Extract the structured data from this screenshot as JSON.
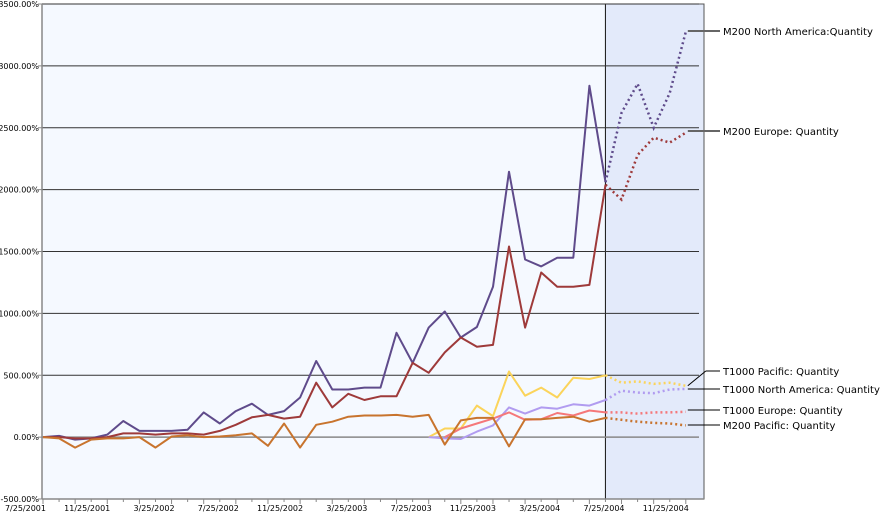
{
  "chart_data": {
    "type": "line",
    "title": "",
    "xlabel": "",
    "ylabel": "",
    "ylim": [
      -500,
      3500
    ],
    "y_ticks": [
      "-500.00%",
      "0.00%",
      "500.00%",
      "1000.00%",
      "1500.00%",
      "2000.00%",
      "2500.00%",
      "3000.00%",
      "3500.00%"
    ],
    "y_tick_values": [
      -500,
      0,
      500,
      1000,
      1500,
      2000,
      2500,
      3000,
      3500
    ],
    "x_tick_labels": [
      "7/25/2001",
      "11/25/2001",
      "3/25/2002",
      "7/25/2002",
      "11/25/2002",
      "3/25/2003",
      "7/25/2003",
      "11/25/2003",
      "3/25/2004",
      "7/25/2004",
      "11/25/2004"
    ],
    "x_start": "7/25/2001",
    "x_interval": "monthly",
    "forecast_start_index": 35,
    "grid": true,
    "legend": "right, labels at line ends",
    "colors": {
      "plot_bg": "#f5f9ff",
      "forecast_bg": "#e3eafa"
    },
    "series": [
      {
        "name": "M200 North America:Quantity",
        "color": "#5f4b8b",
        "values": [
          0,
          10,
          -20,
          -10,
          20,
          130,
          50,
          50,
          50,
          60,
          200,
          110,
          210,
          270,
          180,
          210,
          320,
          615,
          385,
          385,
          400,
          400,
          843,
          600,
          885,
          1015,
          805,
          890,
          1215,
          2145,
          1435,
          1380,
          1450,
          1450,
          2840,
          2060
        ],
        "forecast": [
          2060,
          2620,
          2855,
          2500,
          2780,
          3275
        ]
      },
      {
        "name": "M200 Europe: Quantity",
        "color": "#9e3a3a",
        "values": [
          0,
          0,
          -10,
          -10,
          0,
          30,
          30,
          20,
          30,
          30,
          20,
          50,
          100,
          160,
          180,
          150,
          165,
          440,
          240,
          350,
          300,
          330,
          330,
          600,
          520,
          685,
          805,
          730,
          745,
          1540,
          885,
          1330,
          1215,
          1215,
          1230,
          2040
        ],
        "forecast": [
          2040,
          1920,
          2280,
          2420,
          2380,
          2460
        ]
      },
      {
        "name": "T1000 Pacific: Quantity",
        "color": "#fbd45b",
        "start_index": 24,
        "values": [
          0,
          70,
          70,
          255,
          170,
          530,
          335,
          400,
          320,
          480,
          470,
          500
        ],
        "forecast": [
          500,
          440,
          450,
          430,
          440,
          415
        ]
      },
      {
        "name": "T1000 North America: Quantity",
        "color": "#b19cf0",
        "start_index": 24,
        "values": [
          0,
          -10,
          -15,
          45,
          95,
          240,
          190,
          240,
          230,
          265,
          255,
          300
        ],
        "forecast": [
          300,
          375,
          360,
          355,
          385,
          390
        ]
      },
      {
        "name": "T1000 Europe: Quantity",
        "color": "#f5787a",
        "start_index": 25,
        "values": [
          0,
          70,
          110,
          150,
          200,
          140,
          145,
          195,
          175,
          215,
          200
        ],
        "forecast": [
          200,
          200,
          190,
          200,
          200,
          205
        ]
      },
      {
        "name": "M200 Pacific: Quantity",
        "color": "#c8742e",
        "values": [
          0,
          -10,
          -85,
          -20,
          -10,
          -10,
          0,
          -85,
          5,
          15,
          0,
          5,
          15,
          30,
          -70,
          110,
          -85,
          100,
          125,
          165,
          175,
          175,
          180,
          165,
          180,
          -60,
          135,
          155,
          155,
          -75,
          145,
          145,
          155,
          165,
          125,
          155
        ],
        "forecast": [
          155,
          140,
          125,
          115,
          110,
          95
        ]
      }
    ]
  }
}
